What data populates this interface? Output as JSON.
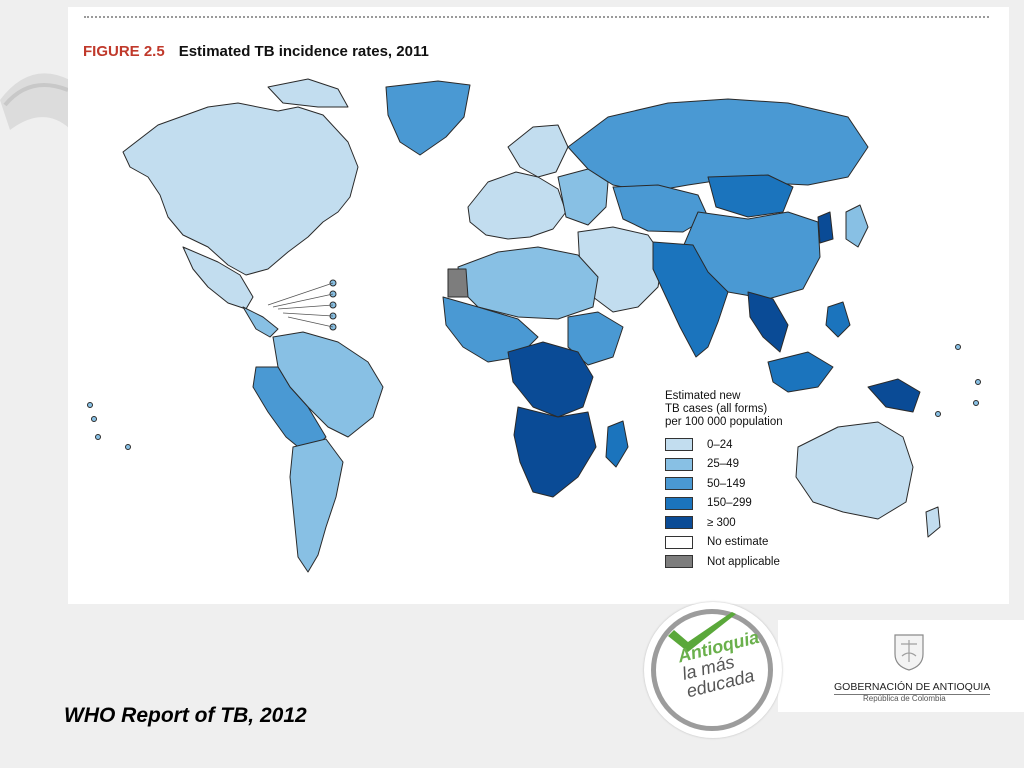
{
  "figure": {
    "number": "FIGURE 2.5",
    "title": "Estimated TB incidence rates, 2011"
  },
  "legend": {
    "title_lines": [
      "Estimated new",
      "TB cases (all forms)",
      "per 100 000 population"
    ],
    "items": [
      {
        "label": "0–24",
        "color": "#c2ddef"
      },
      {
        "label": "25–49",
        "color": "#88c0e4"
      },
      {
        "label": "50–149",
        "color": "#4a99d3"
      },
      {
        "label": "150–299",
        "color": "#1b74bd"
      },
      {
        "label": "≥ 300",
        "color": "#0a4b96"
      },
      {
        "label": "No estimate",
        "color": "#ffffff"
      },
      {
        "label": "Not applicable",
        "color": "#7d7d7d"
      }
    ]
  },
  "caption": "WHO Report of TB, 2012",
  "logo": {
    "line1": "Antioquia",
    "line2": "la más",
    "line3": "educada"
  },
  "government": {
    "name": "GOBERNACIÓN DE ANTIOQUIA",
    "subtitle": "República de Colombia"
  }
}
